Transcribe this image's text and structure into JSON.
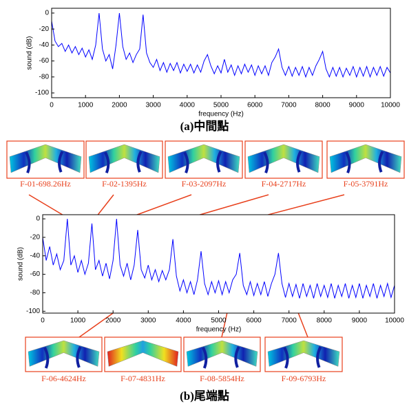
{
  "chart_data": [
    {
      "type": "line",
      "title": "(a)中間點",
      "xlabel": "frequency (Hz)",
      "ylabel": "sound (dB)",
      "color": "#0000ff",
      "xlim": [
        0,
        10000
      ],
      "ylim": [
        -106,
        6
      ],
      "xticks": [
        0,
        1000,
        2000,
        3000,
        4000,
        5000,
        6000,
        7000,
        8000,
        9000,
        10000
      ],
      "yticks": [
        0,
        -20,
        -40,
        -60,
        -80,
        -100
      ],
      "x": [
        0,
        100,
        200,
        300,
        400,
        500,
        600,
        700,
        800,
        900,
        1000,
        1100,
        1200,
        1300,
        1400,
        1500,
        1600,
        1700,
        1800,
        1900,
        2000,
        2100,
        2200,
        2300,
        2400,
        2500,
        2600,
        2700,
        2800,
        2900,
        3000,
        3100,
        3200,
        3300,
        3400,
        3500,
        3600,
        3700,
        3800,
        3900,
        4000,
        4100,
        4200,
        4300,
        4400,
        4500,
        4600,
        4700,
        4800,
        4900,
        5000,
        5100,
        5200,
        5300,
        5400,
        5500,
        5600,
        5700,
        5800,
        5900,
        6000,
        6100,
        6200,
        6300,
        6400,
        6500,
        6600,
        6700,
        6800,
        6900,
        7000,
        7100,
        7200,
        7300,
        7400,
        7500,
        7600,
        7700,
        7800,
        7900,
        8000,
        8100,
        8200,
        8300,
        8400,
        8500,
        8600,
        8700,
        8800,
        8900,
        9000,
        9100,
        9200,
        9300,
        9400,
        9500,
        9600,
        9700,
        9800,
        9900,
        10000
      ],
      "values": [
        -10,
        -35,
        -42,
        -38,
        -48,
        -40,
        -50,
        -42,
        -52,
        -44,
        -55,
        -46,
        -58,
        -40,
        0,
        -45,
        -60,
        -52,
        -70,
        -40,
        0,
        -42,
        -58,
        -50,
        -62,
        -52,
        -45,
        -2,
        -50,
        -62,
        -68,
        -58,
        -72,
        -62,
        -74,
        -63,
        -72,
        -62,
        -75,
        -64,
        -73,
        -64,
        -75,
        -65,
        -74,
        -60,
        -52,
        -66,
        -76,
        -66,
        -75,
        -58,
        -74,
        -65,
        -78,
        -66,
        -76,
        -64,
        -74,
        -65,
        -78,
        -66,
        -76,
        -66,
        -78,
        -62,
        -55,
        -45,
        -68,
        -78,
        -67,
        -79,
        -68,
        -78,
        -67,
        -80,
        -68,
        -78,
        -66,
        -58,
        -48,
        -70,
        -80,
        -68,
        -79,
        -68,
        -80,
        -69,
        -78,
        -67,
        -80,
        -68,
        -79,
        -67,
        -80,
        -68,
        -78,
        -67,
        -79,
        -68,
        -75
      ]
    },
    {
      "type": "line",
      "title": "(b)尾端點",
      "xlabel": "frequency (Hz)",
      "ylabel": "sound (dB)",
      "color": "#0000ff",
      "xlim": [
        0,
        10000
      ],
      "ylim": [
        -102,
        4.5
      ],
      "xticks": [
        0,
        1000,
        2000,
        3000,
        4000,
        5000,
        6000,
        7000,
        8000,
        9000,
        10000
      ],
      "yticks": [
        0,
        -20,
        -40,
        -60,
        -80,
        -100
      ],
      "x": [
        0,
        100,
        200,
        300,
        400,
        500,
        600,
        700,
        800,
        900,
        1000,
        1100,
        1200,
        1300,
        1400,
        1500,
        1600,
        1700,
        1800,
        1900,
        2000,
        2100,
        2200,
        2300,
        2400,
        2500,
        2600,
        2700,
        2800,
        2900,
        3000,
        3100,
        3200,
        3300,
        3400,
        3500,
        3600,
        3700,
        3800,
        3900,
        4000,
        4100,
        4200,
        4300,
        4400,
        4500,
        4600,
        4700,
        4800,
        4900,
        5000,
        5100,
        5200,
        5300,
        5400,
        5500,
        5600,
        5700,
        5800,
        5900,
        6000,
        6100,
        6200,
        6300,
        6400,
        6500,
        6600,
        6700,
        6800,
        6900,
        7000,
        7100,
        7200,
        7300,
        7400,
        7500,
        7600,
        7700,
        7800,
        7900,
        8000,
        8100,
        8200,
        8300,
        8400,
        8500,
        8600,
        8700,
        8800,
        8900,
        9000,
        9100,
        9200,
        9300,
        9400,
        9500,
        9600,
        9700,
        9800,
        9900,
        10000
      ],
      "values": [
        -20,
        -45,
        -30,
        -50,
        -38,
        -55,
        -45,
        0,
        -50,
        -40,
        -58,
        -45,
        -60,
        -48,
        -5,
        -55,
        -45,
        -62,
        -48,
        -65,
        -45,
        0,
        -50,
        -62,
        -48,
        -66,
        -50,
        -12,
        -55,
        -64,
        -50,
        -66,
        -55,
        -68,
        -56,
        -66,
        -55,
        -22,
        -62,
        -78,
        -66,
        -80,
        -68,
        -82,
        -66,
        -35,
        -70,
        -82,
        -68,
        -80,
        -67,
        -82,
        -68,
        -80,
        -66,
        -60,
        -37,
        -72,
        -82,
        -68,
        -83,
        -70,
        -82,
        -68,
        -84,
        -70,
        -60,
        -37,
        -70,
        -85,
        -70,
        -84,
        -71,
        -86,
        -70,
        -84,
        -72,
        -86,
        -70,
        -84,
        -72,
        -85,
        -70,
        -86,
        -72,
        -84,
        -70,
        -86,
        -72,
        -85,
        -70,
        -86,
        -72,
        -84,
        -70,
        -86,
        -72,
        -84,
        -70,
        -85,
        -72
      ],
      "annotations": [
        "F-01-698.26Hz",
        "F-02-1395Hz",
        "F-03-2097Hz",
        "F-04-2717Hz",
        "F-05-3791Hz",
        "F-06-4624Hz",
        "F-07-4831Hz",
        "F-08-5854Hz",
        "F-09-6793Hz"
      ]
    }
  ]
}
